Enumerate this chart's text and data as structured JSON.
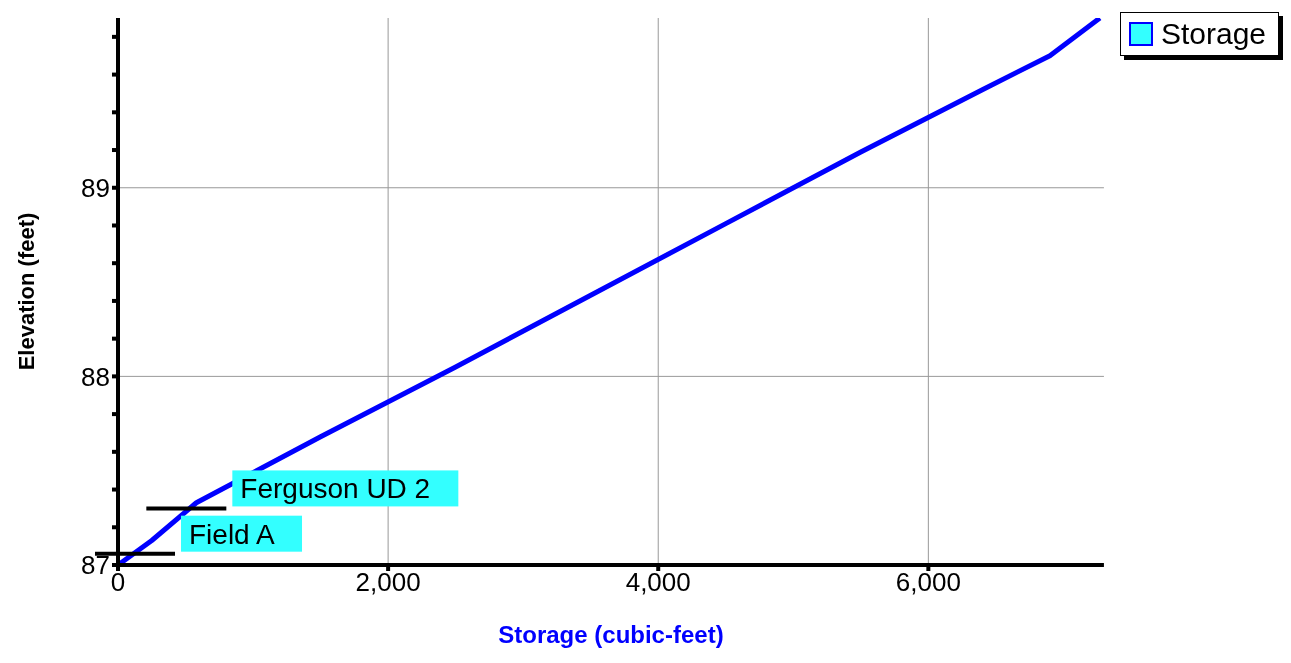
{
  "chart_data": {
    "type": "line",
    "xlabel": "Storage (cubic-feet)",
    "ylabel": "Elevation  (feet)",
    "x": [
      0,
      250,
      580,
      1500,
      2500,
      3500,
      4500,
      5500,
      6400,
      6900,
      7270
    ],
    "series": [
      {
        "name": "Storage",
        "color": "#0000ff",
        "values": [
          87,
          87.13,
          87.33,
          87.68,
          88.05,
          88.43,
          88.81,
          89.19,
          89.52,
          89.7,
          89.9
        ]
      }
    ],
    "xlim": [
      0,
      7300
    ],
    "ylim": [
      87,
      89.9
    ],
    "xticks": [
      {
        "value": 0,
        "label": "0"
      },
      {
        "value": 2000,
        "label": "2,000"
      },
      {
        "value": 4000,
        "label": "4,000"
      },
      {
        "value": 6000,
        "label": "6,000"
      }
    ],
    "yticks": [
      87,
      {
        "value": 87.2,
        "label": null
      },
      {
        "value": 87.4,
        "label": null
      },
      {
        "value": 87.6,
        "label": null
      },
      {
        "value": 87.8,
        "label": null
      },
      88,
      {
        "value": 88.2,
        "label": null
      },
      {
        "value": 88.4,
        "label": null
      },
      {
        "value": 88.6,
        "label": null
      },
      {
        "value": 88.8,
        "label": null
      },
      89,
      {
        "value": 89.2,
        "label": null
      },
      {
        "value": 89.4,
        "label": null
      },
      {
        "value": 89.6,
        "label": null
      },
      {
        "value": 89.8,
        "label": null
      }
    ],
    "annotations": [
      {
        "text": "Ferguson UD  2",
        "x": 580,
        "y": 87.3
      },
      {
        "text": "Field A",
        "x": 200,
        "y": 87.06
      }
    ],
    "grid": true,
    "legend": "top right",
    "marker": "none",
    "line_style": "solid"
  }
}
